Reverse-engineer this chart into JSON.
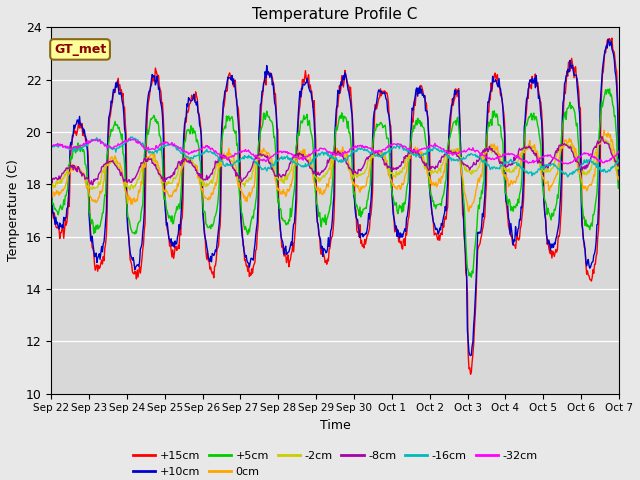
{
  "title": "Temperature Profile C",
  "xlabel": "Time",
  "ylabel": "Temperature (C)",
  "ylim": [
    10,
    24
  ],
  "yticks": [
    10,
    12,
    14,
    16,
    18,
    20,
    22,
    24
  ],
  "annotation_text": "GT_met",
  "annotation_color": "#8B0000",
  "annotation_bg": "#FFFF99",
  "annotation_border": "#8B6914",
  "series_labels": [
    "+15cm",
    "+10cm",
    "+5cm",
    "0cm",
    "-2cm",
    "-8cm",
    "-16cm",
    "-32cm"
  ],
  "series_colors": [
    "#FF0000",
    "#0000CD",
    "#00CC00",
    "#FFA500",
    "#CCCC00",
    "#AA00AA",
    "#00BBBB",
    "#FF00FF"
  ],
  "xtick_labels": [
    "Sep 22",
    "Sep 23",
    "Sep 24",
    "Sep 25",
    "Sep 26",
    "Sep 27",
    "Sep 28",
    "Sep 29",
    "Sep 30",
    "Oct 1",
    "Oct 2",
    "Oct 3",
    "Oct 4",
    "Oct 5",
    "Oct 6",
    "Oct 7"
  ],
  "bg_color": "#E8E8E8",
  "plot_bg": "#D8D8D8",
  "fig_width": 6.4,
  "fig_height": 4.8,
  "dpi": 100
}
